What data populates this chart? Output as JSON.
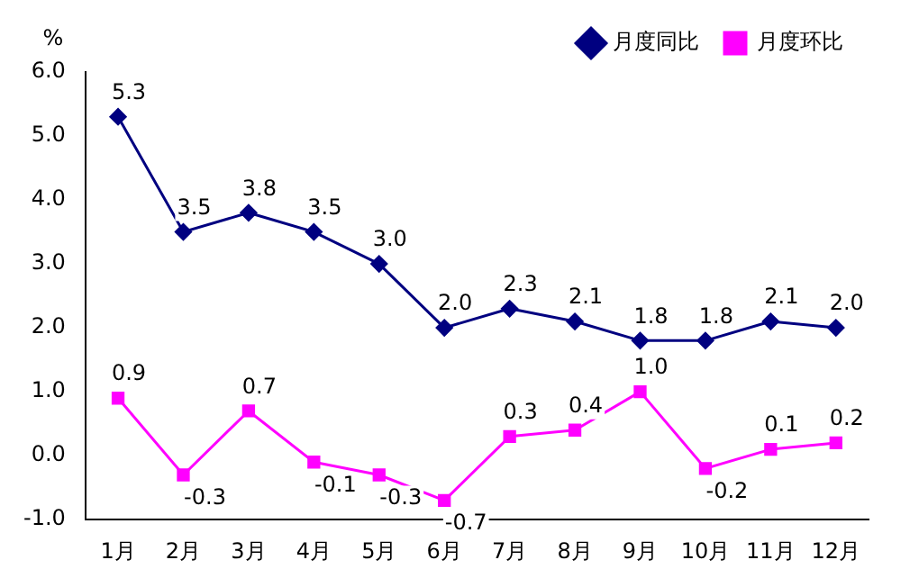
{
  "chart_data": {
    "type": "line",
    "ylabel": "%",
    "categories": [
      "1月",
      "2月",
      "3月",
      "4月",
      "5月",
      "6月",
      "7月",
      "8月",
      "9月",
      "10月",
      "11月",
      "12月"
    ],
    "series": [
      {
        "name": "月度同比",
        "color": "#000080",
        "marker": "diamond",
        "values": [
          5.3,
          3.5,
          3.8,
          3.5,
          3.0,
          2.0,
          2.3,
          2.1,
          1.8,
          1.8,
          2.1,
          2.0
        ],
        "value_labels": [
          "5.3",
          "3.5",
          "3.8",
          "3.5",
          "3.0",
          "2.0",
          "2.3",
          "2.1",
          "1.8",
          "1.8",
          "2.1",
          "2.0"
        ]
      },
      {
        "name": "月度环比",
        "color": "#ff00ff",
        "marker": "square",
        "values": [
          0.9,
          -0.3,
          0.7,
          -0.1,
          -0.3,
          -0.7,
          0.3,
          0.4,
          1.0,
          -0.2,
          0.1,
          0.2
        ],
        "value_labels": [
          "0.9",
          "-0.3",
          "0.7",
          "-0.1",
          "-0.3",
          "-0.7",
          "0.3",
          "0.4",
          "1.0",
          "-0.2",
          "0.1",
          "0.2"
        ]
      }
    ],
    "ylim": [
      -1,
      6
    ],
    "yticks": [
      {
        "value": -1,
        "label": "-1.0"
      },
      {
        "value": 0,
        "label": "0.0"
      },
      {
        "value": 1,
        "label": "1.0"
      },
      {
        "value": 2,
        "label": "2.0"
      },
      {
        "value": 3,
        "label": "3.0"
      },
      {
        "value": 4,
        "label": "4.0"
      },
      {
        "value": 5,
        "label": "5.0"
      },
      {
        "value": 6,
        "label": "6.0"
      }
    ],
    "grid": false,
    "legend": "top right",
    "line_style": "solid"
  }
}
